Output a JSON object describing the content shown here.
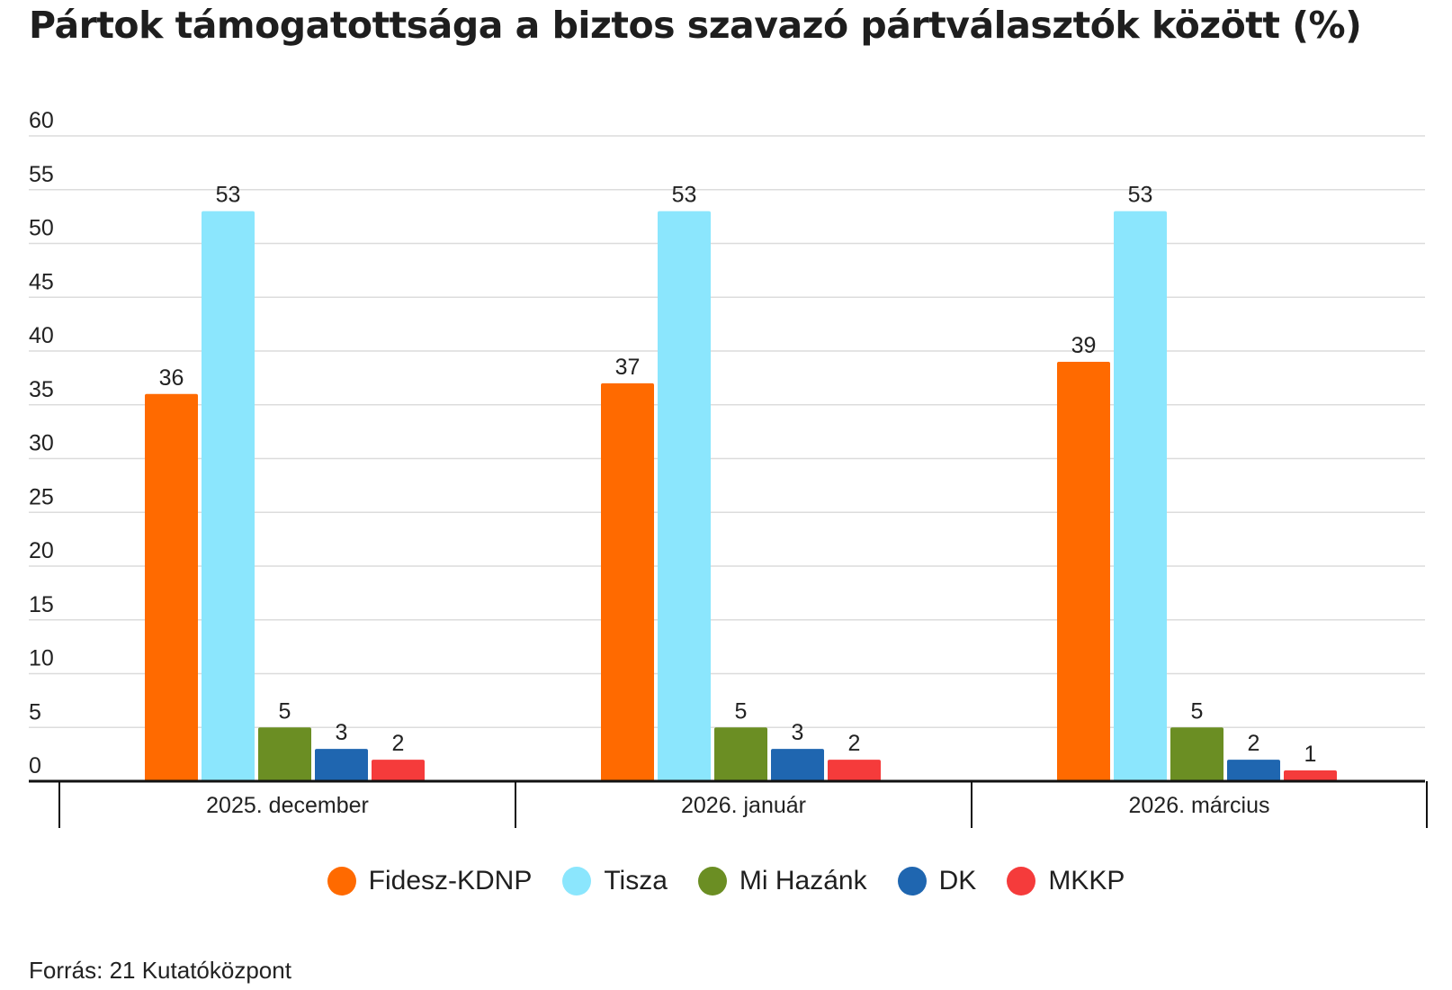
{
  "chart_data": {
    "type": "bar",
    "title": "Pártok támogatottsága a biztos szavazó pártválasztók között (%)",
    "xlabel": "",
    "ylabel": "",
    "ylim": [
      0,
      60
    ],
    "yticks": [
      0,
      5,
      10,
      15,
      20,
      25,
      30,
      35,
      40,
      45,
      50,
      55,
      60
    ],
    "grid": true,
    "legend_position": "bottom",
    "categories": [
      "2025. december",
      "2026. január",
      "2026. március"
    ],
    "series": [
      {
        "name": "Fidesz-KDNP",
        "color": "#ff6a00",
        "values": [
          36,
          37,
          39
        ]
      },
      {
        "name": "Tisza",
        "color": "#8be6fd",
        "values": [
          53,
          53,
          53
        ]
      },
      {
        "name": "Mi Hazánk",
        "color": "#6b8e23",
        "values": [
          5,
          5,
          5
        ]
      },
      {
        "name": "DK",
        "color": "#1f66b0",
        "values": [
          3,
          3,
          2
        ]
      },
      {
        "name": "MKKP",
        "color": "#f53b3b",
        "values": [
          2,
          2,
          1
        ]
      }
    ]
  },
  "source": "Forrás: 21 Kutatóközpont"
}
